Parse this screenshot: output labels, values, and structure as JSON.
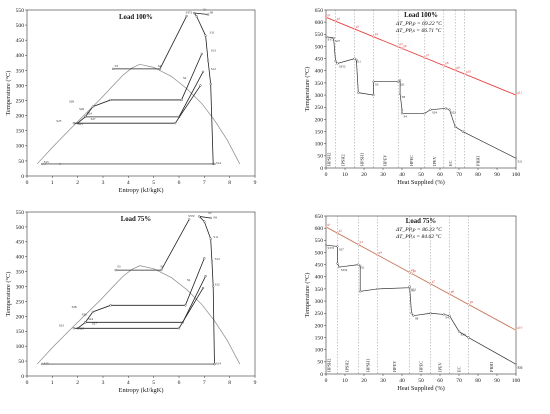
{
  "chart_data": [
    {
      "id": "ts100",
      "type": "line",
      "title": "Load 100%",
      "xlabel": "Entropy (kJ/kgK)",
      "ylabel": "Temperature (°C)",
      "xlim": [
        0,
        9
      ],
      "ylim": [
        0,
        550
      ],
      "xticks": [
        "0",
        "1",
        "2",
        "3",
        "4",
        "5",
        "6",
        "7",
        "8",
        "9"
      ],
      "yticks": [
        "0",
        "50",
        "100",
        "150",
        "200",
        "250",
        "300",
        "350",
        "400",
        "450",
        "500",
        "550"
      ],
      "dome": {
        "liquid": [
          [
            0.4,
            40
          ],
          [
            1.0,
            95
          ],
          [
            1.7,
            155
          ],
          [
            2.3,
            205
          ],
          [
            2.9,
            255
          ],
          [
            3.4,
            300
          ],
          [
            3.8,
            335
          ],
          [
            4.15,
            358
          ],
          [
            4.45,
            370
          ]
        ],
        "vapor": [
          [
            4.45,
            370
          ],
          [
            5.0,
            360
          ],
          [
            5.7,
            330
          ],
          [
            6.3,
            290
          ],
          [
            6.9,
            240
          ],
          [
            7.4,
            185
          ],
          [
            7.9,
            120
          ],
          [
            8.4,
            40
          ]
        ]
      },
      "series": [
        {
          "color": "#222222",
          "points": [
            [
              7.35,
              40
            ],
            [
              7.25,
              305
            ],
            [
              7.15,
              380
            ],
            [
              7.05,
              465
            ],
            [
              6.7,
              528
            ],
            [
              6.6,
              540
            ],
            [
              7.15,
              535
            ]
          ]
        },
        {
          "color": "#222222",
          "points": [
            [
              2.0,
              175
            ],
            [
              2.3,
              196
            ],
            [
              2.6,
              230
            ],
            [
              3.3,
              252
            ],
            [
              6.1,
              252
            ],
            [
              6.9,
              405
            ]
          ]
        },
        {
          "color": "#222222",
          "points": [
            [
              2.3,
              196
            ],
            [
              6.0,
              196
            ],
            [
              6.95,
              345
            ]
          ]
        },
        {
          "color": "#222222",
          "points": [
            [
              3.4,
              355
            ],
            [
              5.25,
              355
            ],
            [
              6.3,
              530
            ]
          ]
        },
        {
          "color": "#555555",
          "points": [
            [
              1.3,
              40
            ],
            [
              0.7,
              40
            ],
            [
              0.6,
              40
            ],
            [
              7.4,
              40
            ]
          ]
        },
        {
          "color": "#222222",
          "points": [
            [
              1.85,
              175
            ],
            [
              5.85,
              175
            ],
            [
              6.85,
              300
            ]
          ]
        }
      ],
      "labels": [
        {
          "text": "S372",
          "x": 6.2,
          "y": 535
        },
        {
          "text": "S1",
          "x": 6.9,
          "y": 545
        },
        {
          "text": "S8",
          "x": 7.15,
          "y": 535
        },
        {
          "text": "S11",
          "x": 7.15,
          "y": 468
        },
        {
          "text": "S3",
          "x": 3.4,
          "y": 358
        },
        {
          "text": "S4",
          "x": 5.1,
          "y": 358
        },
        {
          "text": "S2",
          "x": 6.1,
          "y": 318
        },
        {
          "text": "S13",
          "x": 7.2,
          "y": 410
        },
        {
          "text": "S12",
          "x": 7.2,
          "y": 348
        },
        {
          "text": "S28",
          "x": 1.6,
          "y": 240
        },
        {
          "text": "S26",
          "x": 2.0,
          "y": 215
        },
        {
          "text": "S24",
          "x": 2.3,
          "y": 200
        },
        {
          "text": "S23",
          "x": 1.1,
          "y": 175
        },
        {
          "text": "S27",
          "x": 2.45,
          "y": 182
        },
        {
          "text": "S25",
          "x": 1.95,
          "y": 166
        },
        {
          "text": "S15",
          "x": 0.6,
          "y": 40
        },
        {
          "text": "S14",
          "x": 7.4,
          "y": 36
        }
      ]
    },
    {
      "id": "ts75",
      "type": "line",
      "title": "Load 75%",
      "xlabel": "Entropy (kJ/kgK)",
      "ylabel": "Temperature (°C)",
      "xlim": [
        0,
        9
      ],
      "ylim": [
        0,
        550
      ],
      "xticks": [
        "0",
        "1",
        "2",
        "3",
        "4",
        "5",
        "6",
        "7",
        "8",
        "9"
      ],
      "yticks": [
        "0",
        "50",
        "100",
        "150",
        "200",
        "250",
        "300",
        "350",
        "400",
        "450",
        "500",
        "550"
      ],
      "dome": {
        "liquid": [
          [
            0.4,
            40
          ],
          [
            1.0,
            95
          ],
          [
            1.7,
            155
          ],
          [
            2.3,
            205
          ],
          [
            2.9,
            255
          ],
          [
            3.4,
            300
          ],
          [
            3.8,
            335
          ],
          [
            4.15,
            358
          ],
          [
            4.45,
            370
          ]
        ],
        "vapor": [
          [
            4.45,
            370
          ],
          [
            5.0,
            360
          ],
          [
            5.7,
            330
          ],
          [
            6.3,
            290
          ],
          [
            6.9,
            240
          ],
          [
            7.4,
            185
          ],
          [
            7.9,
            120
          ],
          [
            8.4,
            40
          ]
        ]
      },
      "series": [
        {
          "color": "#222222",
          "points": [
            [
              7.4,
              40
            ],
            [
              7.35,
              300
            ],
            [
              7.3,
              385
            ],
            [
              7.25,
              460
            ],
            [
              7.0,
              518
            ],
            [
              6.8,
              535
            ],
            [
              7.25,
              530
            ]
          ]
        },
        {
          "color": "#222222",
          "points": [
            [
              2.0,
              160
            ],
            [
              2.3,
              180
            ],
            [
              2.6,
              215
            ],
            [
              3.3,
              237
            ],
            [
              6.25,
              237
            ],
            [
              7.0,
              395
            ]
          ]
        },
        {
          "color": "#222222",
          "points": [
            [
              2.3,
              180
            ],
            [
              6.15,
              180
            ],
            [
              7.05,
              335
            ]
          ]
        },
        {
          "color": "#222222",
          "points": [
            [
              3.5,
              355
            ],
            [
              5.3,
              355
            ],
            [
              6.4,
              525
            ]
          ]
        },
        {
          "color": "#555555",
          "points": [
            [
              0.6,
              40
            ],
            [
              7.4,
              40
            ]
          ]
        },
        {
          "color": "#222222",
          "points": [
            [
              1.85,
              160
            ],
            [
              6.0,
              160
            ],
            [
              6.95,
              295
            ]
          ]
        }
      ],
      "labels": [
        {
          "text": "S372",
          "x": 6.3,
          "y": 530
        },
        {
          "text": "S1",
          "x": 7.1,
          "y": 540
        },
        {
          "text": "S8",
          "x": 7.3,
          "y": 525
        },
        {
          "text": "S11",
          "x": 7.3,
          "y": 460
        },
        {
          "text": "S3",
          "x": 3.5,
          "y": 360
        },
        {
          "text": "S4",
          "x": 5.2,
          "y": 360
        },
        {
          "text": "S2",
          "x": 6.25,
          "y": 315
        },
        {
          "text": "S13",
          "x": 7.35,
          "y": 385
        },
        {
          "text": "S12",
          "x": 7.35,
          "y": 300
        },
        {
          "text": "S28",
          "x": 1.7,
          "y": 225
        },
        {
          "text": "S26",
          "x": 2.1,
          "y": 200
        },
        {
          "text": "S24",
          "x": 2.35,
          "y": 185
        },
        {
          "text": "S23",
          "x": 1.2,
          "y": 163
        },
        {
          "text": "S27",
          "x": 2.5,
          "y": 170
        },
        {
          "text": "S25",
          "x": 2.0,
          "y": 152
        },
        {
          "text": "S15",
          "x": 0.6,
          "y": 36
        },
        {
          "text": "S14",
          "x": 7.4,
          "y": 36
        }
      ]
    },
    {
      "id": "hs100",
      "type": "line",
      "title": "Load 100%",
      "subtitle_lines": [
        "ΔT_PP,p = 69.22 °C",
        "ΔT_PP,s = 66.71 °C"
      ],
      "xlabel": "Heat Supplied (%)",
      "ylabel": "Temperature (°C)",
      "xlim": [
        0,
        100
      ],
      "ylim": [
        0,
        650
      ],
      "xticks": [
        "0",
        "10",
        "20",
        "30",
        "40",
        "50",
        "60",
        "70",
        "80",
        "90",
        "100"
      ],
      "yticks": [
        "0",
        "50",
        "100",
        "150",
        "200",
        "250",
        "300",
        "350",
        "400",
        "450",
        "500",
        "550",
        "600",
        "650"
      ],
      "gas_line": {
        "color": "#e84040",
        "x": [
          0,
          100
        ],
        "y": [
          620,
          300
        ]
      },
      "gas_points": [
        [
          0,
          620
        ],
        [
          5,
          604
        ],
        [
          15,
          572
        ],
        [
          25,
          540
        ],
        [
          38,
          499
        ],
        [
          40,
          492
        ],
        [
          52,
          454
        ],
        [
          62,
          422
        ],
        [
          68,
          403
        ],
        [
          73,
          386
        ],
        [
          100,
          300
        ]
      ],
      "gas_labels": [
        "g1",
        "g2",
        "g3",
        "g4",
        "g5",
        "g6",
        "g7",
        "g8",
        "g9",
        "g10",
        "g11"
      ],
      "steam": [
        [
          0,
          540
        ],
        [
          4,
          535
        ],
        [
          5,
          440
        ],
        [
          6,
          430
        ],
        [
          15,
          450
        ],
        [
          16,
          445
        ],
        [
          17,
          310
        ],
        [
          25,
          300
        ],
        [
          25,
          355
        ],
        [
          38,
          355
        ],
        [
          39,
          360
        ],
        [
          39,
          305
        ],
        [
          40,
          240
        ],
        [
          40,
          225
        ],
        [
          52,
          225
        ],
        [
          55,
          240
        ],
        [
          63,
          245
        ],
        [
          65,
          240
        ],
        [
          68,
          170
        ],
        [
          72,
          150
        ],
        [
          100,
          40
        ]
      ],
      "dividers": [
        5,
        15,
        25,
        38,
        52,
        62,
        68,
        73
      ],
      "segments": [
        "HPSH2",
        "IPSH2",
        "HPSH1",
        "HPEV",
        "HPEC",
        "IPEV",
        "EC",
        "PRHI"
      ],
      "segment_x": [
        1.5,
        9,
        19,
        31,
        45,
        57,
        65.5,
        80
      ],
      "steam_labels": [
        "S372",
        "S27",
        "S352",
        "S11",
        "S3",
        "S21",
        "S8",
        "S4",
        "S24",
        "S22",
        "S21"
      ]
    },
    {
      "id": "hs75",
      "type": "line",
      "title": "Load 75%",
      "subtitle_lines": [
        "ΔT_PP,p = 86.33 °C",
        "ΔT_PP,s = 84.62 °C"
      ],
      "xlabel": "Heat Supplied (%)",
      "ylabel": "Temperature (°C)",
      "xlim": [
        0,
        100
      ],
      "ylim": [
        0,
        650
      ],
      "xticks": [
        "0",
        "10",
        "20",
        "30",
        "40",
        "50",
        "60",
        "70",
        "80",
        "90",
        "100"
      ],
      "yticks": [
        "0",
        "50",
        "100",
        "150",
        "200",
        "250",
        "300",
        "350",
        "400",
        "450",
        "500",
        "550",
        "600",
        "650"
      ],
      "gas_line": {
        "color": "#c97a60",
        "x": [
          0,
          100
        ],
        "y": [
          605,
          180
        ]
      },
      "gas_points": [
        [
          0,
          605
        ],
        [
          6,
          580
        ],
        [
          17,
          533
        ],
        [
          27,
          490
        ],
        [
          44,
          418
        ],
        [
          45,
          414
        ],
        [
          55,
          371
        ],
        [
          65,
          329
        ],
        [
          75,
          286
        ],
        [
          100,
          180
        ]
      ],
      "gas_labels": [
        "g1",
        "g2",
        "g3",
        "g4",
        "g5",
        "g6",
        "g7",
        "g8",
        "g9",
        "g10"
      ],
      "steam": [
        [
          0,
          530
        ],
        [
          6,
          525
        ],
        [
          6,
          455
        ],
        [
          7,
          440
        ],
        [
          17,
          450
        ],
        [
          18,
          445
        ],
        [
          18,
          340
        ],
        [
          27,
          350
        ],
        [
          44,
          355
        ],
        [
          44,
          360
        ],
        [
          45,
          250
        ],
        [
          46,
          240
        ],
        [
          55,
          250
        ],
        [
          62,
          245
        ],
        [
          65,
          240
        ],
        [
          70,
          175
        ],
        [
          75,
          150
        ],
        [
          100,
          40
        ]
      ],
      "dividers": [
        6,
        17,
        27,
        44,
        55,
        65,
        75
      ],
      "segments": [
        "HPSH2",
        "IPSH2",
        "HPSH1",
        "HPEV",
        "HPEC",
        "IPEV",
        "EC",
        "PRHI"
      ],
      "segment_x": [
        1.5,
        11,
        22,
        36,
        50,
        60,
        70,
        87
      ],
      "steam_labels": [
        "S372",
        "S27",
        "S352",
        "S11",
        "S3",
        "S21",
        "S8",
        "S4",
        "S24",
        "S22",
        "S21"
      ]
    }
  ]
}
